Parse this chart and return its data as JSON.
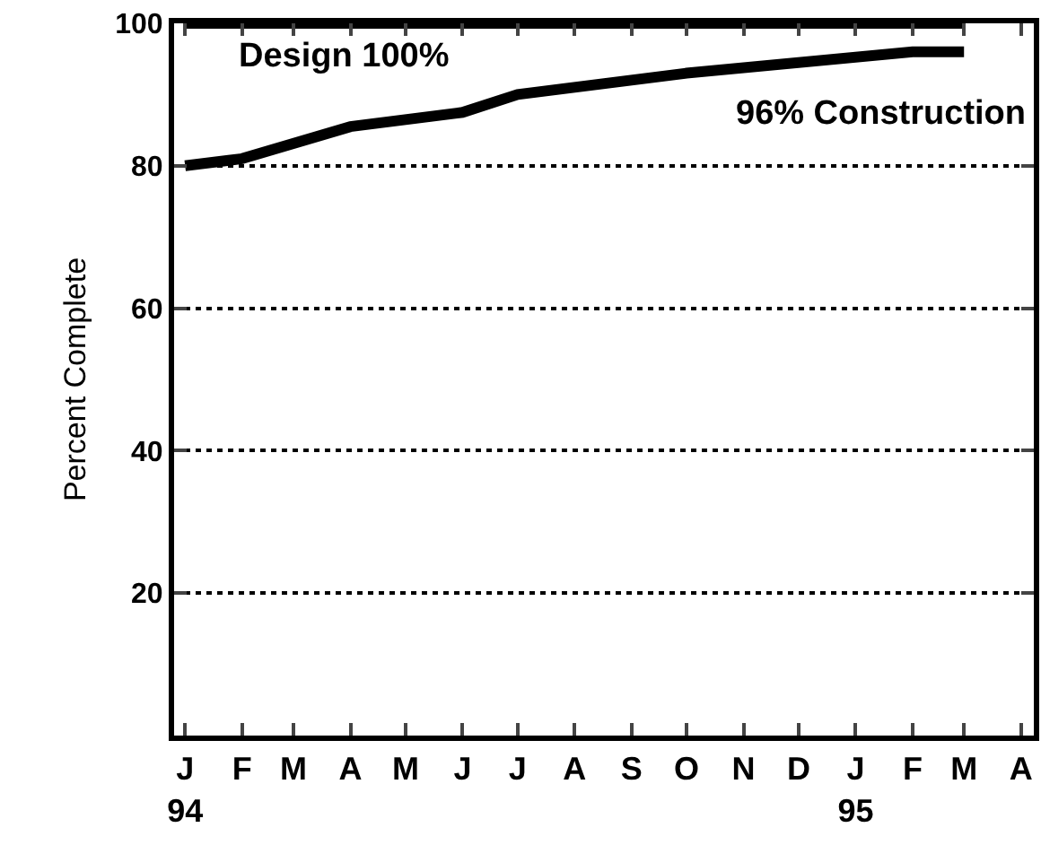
{
  "chart_data": {
    "type": "line",
    "ylabel": "Percent Complete",
    "series": [
      {
        "color": "#000000",
        "x": [
          "1994-01",
          "1995-03"
        ],
        "values": [
          100,
          100
        ]
      },
      {
        "color": "#000000",
        "x": [
          "1994-01",
          "1994-02",
          "1994-04",
          "1994-06",
          "1994-07",
          "1994-10",
          "1995-02",
          "1995-03"
        ],
        "values": [
          80,
          81,
          85.5,
          87.5,
          90,
          93,
          96,
          96
        ]
      }
    ],
    "annotations": [
      "Design 100%",
      "96% Construction"
    ],
    "xlim": [
      "1993-12-26",
      "1995-04-08"
    ],
    "xticks": [
      {
        "value": "1994-01",
        "label": "J\n94"
      },
      {
        "value": "1994-02",
        "label": "F"
      },
      {
        "value": "1994-03",
        "label": "M"
      },
      {
        "value": "1994-04",
        "label": "A"
      },
      {
        "value": "1994-05",
        "label": "M"
      },
      {
        "value": "1994-06",
        "label": "J"
      },
      {
        "value": "1994-07",
        "label": "J"
      },
      {
        "value": "1994-08",
        "label": "A"
      },
      {
        "value": "1994-09",
        "label": "S"
      },
      {
        "value": "1994-10",
        "label": "O"
      },
      {
        "value": "1994-11",
        "label": "N"
      },
      {
        "value": "1994-12",
        "label": "D"
      },
      {
        "value": "1995-01",
        "label": "J\n95"
      },
      {
        "value": "1995-02",
        "label": "F"
      },
      {
        "value": "1995-03",
        "label": "M"
      },
      {
        "value": "1995-04",
        "label": "A"
      }
    ],
    "ylim": [
      0,
      100
    ],
    "yticks": [
      20,
      40,
      60,
      80,
      100
    ],
    "grid": "y",
    "line_style": "solid"
  }
}
